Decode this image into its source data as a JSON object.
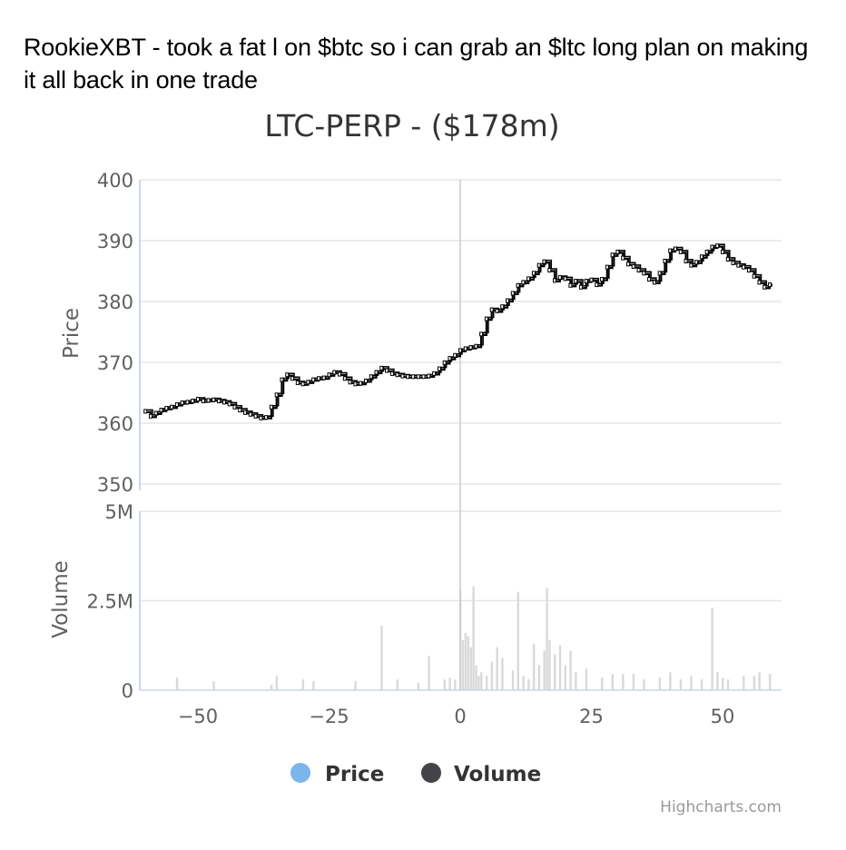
{
  "post": {
    "caption": "RookieXBT - took a fat l on $btc so i can grab an $ltc long plan on making it all back in one trade"
  },
  "credits": "Highcharts.com",
  "colors": {
    "price_legend": "#7cb5ec",
    "volume_legend": "#434348",
    "volume_bars": "#d9d9d9",
    "grid": "#e6e6e6",
    "axis_line": "#ccd6eb",
    "candle": "#000000"
  },
  "chart_data": {
    "type": "line",
    "title": "LTC-PERP - ($178m)",
    "legend": {
      "items": [
        "Price",
        "Volume"
      ],
      "position": "bottom-center"
    },
    "x_axis": {
      "range": [
        -60,
        60
      ],
      "tick_labels": [
        "−50",
        "−25",
        "0",
        "25",
        "50"
      ],
      "tick_values": [
        -50,
        -25,
        0,
        25,
        50
      ],
      "crosshair_x": 0
    },
    "price_axis": {
      "label": "Price",
      "range": [
        350,
        400
      ],
      "tick_labels": [
        "400",
        "390",
        "380",
        "370",
        "360",
        "350"
      ],
      "tick_values": [
        400,
        390,
        380,
        370,
        360,
        350
      ],
      "grid": true
    },
    "volume_axis": {
      "label": "Volume",
      "range": [
        0,
        5000000
      ],
      "tick_labels": [
        "5M",
        "2.5M",
        "0"
      ],
      "tick_values": [
        5000000,
        2500000,
        0
      ],
      "grid": true
    },
    "series": [
      {
        "name": "Price",
        "x": [
          -60,
          -59,
          -58,
          -57,
          -56,
          -55,
          -54,
          -53,
          -52,
          -51,
          -50,
          -49,
          -48,
          -47,
          -46,
          -45,
          -44,
          -43,
          -42,
          -41,
          -40,
          -39,
          -38,
          -37,
          -36,
          -35,
          -34,
          -33,
          -32,
          -31,
          -30,
          -29,
          -28,
          -27,
          -26,
          -25,
          -24,
          -23,
          -22,
          -21,
          -20,
          -19,
          -18,
          -17,
          -16,
          -15,
          -14,
          -13,
          -12,
          -11,
          -10,
          -9,
          -8,
          -7,
          -6,
          -5,
          -4,
          -3,
          -2,
          -1,
          0,
          1,
          2,
          3,
          4,
          5,
          6,
          7,
          8,
          9,
          10,
          11,
          12,
          13,
          14,
          15,
          16,
          17,
          18,
          19,
          20,
          21,
          22,
          23,
          24,
          25,
          26,
          27,
          28,
          29,
          30,
          31,
          32,
          33,
          34,
          35,
          36,
          37,
          38,
          39,
          40,
          41,
          42,
          43,
          44,
          45,
          46,
          47,
          48,
          49,
          50,
          51,
          52,
          53,
          54,
          55,
          56,
          57,
          58,
          59
        ],
        "values": [
          361.8,
          361.0,
          361.5,
          362.0,
          362.3,
          362.5,
          362.9,
          363.2,
          363.3,
          363.5,
          363.8,
          363.5,
          363.6,
          363.7,
          363.5,
          363.3,
          363.0,
          362.5,
          362.0,
          361.6,
          361.3,
          361.0,
          360.7,
          360.8,
          362.5,
          364.5,
          367.0,
          367.8,
          367.2,
          366.5,
          366.3,
          366.6,
          367.0,
          367.2,
          367.3,
          367.8,
          368.2,
          367.9,
          367.2,
          366.6,
          366.3,
          366.4,
          366.8,
          367.5,
          368.2,
          368.9,
          368.5,
          368.0,
          367.8,
          367.6,
          367.5,
          367.5,
          367.5,
          367.5,
          367.6,
          368.0,
          368.8,
          369.8,
          370.5,
          371.0,
          371.8,
          372.1,
          372.3,
          372.5,
          374.5,
          377.0,
          378.5,
          378.3,
          379.0,
          380.0,
          381.2,
          382.5,
          383.0,
          383.6,
          384.5,
          385.8,
          386.4,
          385.0,
          383.3,
          383.8,
          383.6,
          382.5,
          383.2,
          382.2,
          383.2,
          383.4,
          382.6,
          383.5,
          385.5,
          387.5,
          388.0,
          387.0,
          386.0,
          385.6,
          385.0,
          384.5,
          383.5,
          383.0,
          384.5,
          386.5,
          388.2,
          388.5,
          388.0,
          386.5,
          385.8,
          386.3,
          387.2,
          388.0,
          388.8,
          389.0,
          388.0,
          386.8,
          386.2,
          385.8,
          385.5,
          385.0,
          384.0,
          383.0,
          382.2,
          382.6
        ]
      },
      {
        "name": "Volume",
        "x": [
          -54,
          -47,
          -36,
          -35,
          -30,
          -28,
          -20,
          -15,
          -12,
          -8,
          -6,
          -3,
          -2,
          -1,
          0,
          0.5,
          1,
          1.5,
          2,
          2.5,
          3,
          3.5,
          4,
          5,
          6,
          7,
          8,
          10,
          11,
          12,
          13,
          14,
          15,
          16,
          16.5,
          17,
          18,
          19,
          20,
          21,
          22,
          24,
          27,
          29,
          31,
          33,
          35,
          38,
          40,
          42,
          44,
          46,
          48,
          49,
          50,
          51,
          54,
          56,
          57,
          59
        ],
        "values": [
          350000,
          250000,
          150000,
          400000,
          300000,
          250000,
          250000,
          1800000,
          300000,
          200000,
          950000,
          300000,
          350000,
          300000,
          2800000,
          1400000,
          1600000,
          1500000,
          1200000,
          2900000,
          700000,
          400000,
          500000,
          400000,
          800000,
          1200000,
          900000,
          550000,
          2750000,
          400000,
          300000,
          1300000,
          700000,
          1100000,
          2850000,
          1400000,
          1000000,
          1250000,
          700000,
          1100000,
          500000,
          600000,
          350000,
          450000,
          450000,
          450000,
          300000,
          350000,
          500000,
          300000,
          400000,
          300000,
          2300000,
          500000,
          350000,
          300000,
          400000,
          400000,
          500000,
          450000
        ]
      }
    ]
  }
}
